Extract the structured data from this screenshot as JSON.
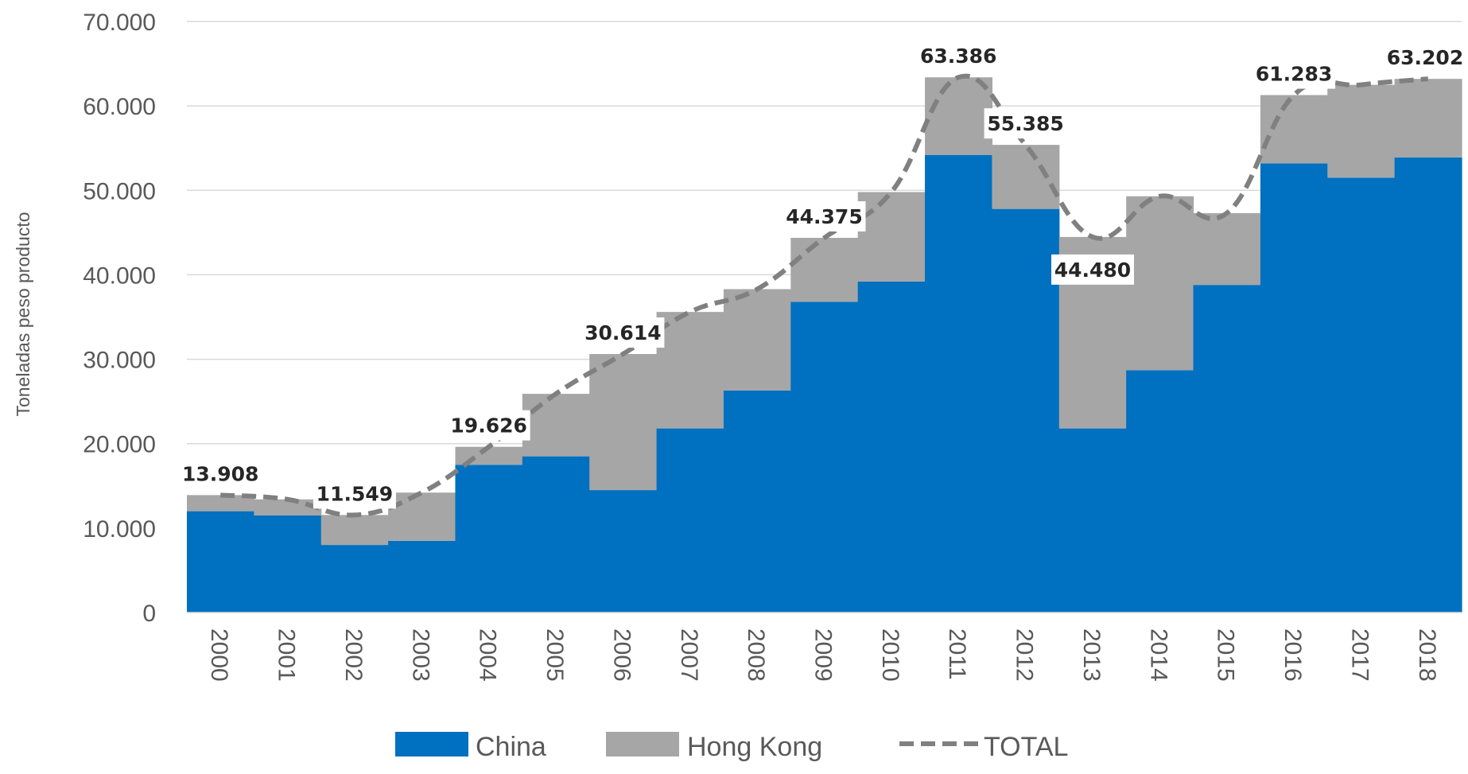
{
  "chart_data": {
    "type": "area",
    "ylabel": "Toneladas peso producto",
    "ylim": [
      0,
      70000
    ],
    "yticks": [
      0,
      10000,
      20000,
      30000,
      40000,
      50000,
      60000,
      70000
    ],
    "ytick_labels": [
      "0",
      "10.000",
      "20.000",
      "30.000",
      "40.000",
      "50.000",
      "60.000",
      "70.000"
    ],
    "categories": [
      "2000",
      "2001",
      "2002",
      "2003",
      "2004",
      "2005",
      "2006",
      "2007",
      "2008",
      "2009",
      "2010",
      "2011",
      "2012",
      "2013",
      "2014",
      "2015",
      "2016",
      "2017",
      "2018"
    ],
    "series": [
      {
        "name": "China",
        "type": "area-step",
        "color": "#0070C0",
        "values": [
          12000,
          11500,
          8000,
          8500,
          17500,
          18500,
          14500,
          21800,
          26300,
          36800,
          39200,
          54200,
          47800,
          21800,
          28700,
          38800,
          53200,
          51500,
          53900
        ]
      },
      {
        "name": "Hong Kong",
        "type": "area-step",
        "color": "#A6A6A6",
        "values": [
          1908,
          1900,
          3549,
          5700,
          2126,
          7400,
          16114,
          13800,
          12000,
          7575,
          10600,
          9186,
          7585,
          22680,
          20600,
          8500,
          8083,
          11000,
          9302
        ]
      },
      {
        "name": "TOTAL",
        "type": "line-dashed",
        "color": "#808080",
        "values": [
          13908,
          13400,
          11549,
          14200,
          19626,
          25900,
          30614,
          35600,
          38300,
          44375,
          49800,
          63386,
          55385,
          44480,
          49300,
          47300,
          61283,
          62500,
          63202
        ]
      }
    ],
    "data_labels": [
      {
        "index": 0,
        "text": "13.908",
        "pos": "above"
      },
      {
        "index": 2,
        "text": "11.549",
        "pos": "above"
      },
      {
        "index": 4,
        "text": "19.626",
        "pos": "above"
      },
      {
        "index": 6,
        "text": "30.614",
        "pos": "above"
      },
      {
        "index": 9,
        "text": "44.375",
        "pos": "above"
      },
      {
        "index": 11,
        "text": "63.386",
        "pos": "above"
      },
      {
        "index": 12,
        "text": "55.385",
        "pos": "above"
      },
      {
        "index": 13,
        "text": "44.480",
        "pos": "below"
      },
      {
        "index": 16,
        "text": "61.283",
        "pos": "above"
      },
      {
        "index": 18,
        "text": "63.202",
        "pos": "above"
      }
    ],
    "grid": true,
    "legend": "bottom"
  }
}
